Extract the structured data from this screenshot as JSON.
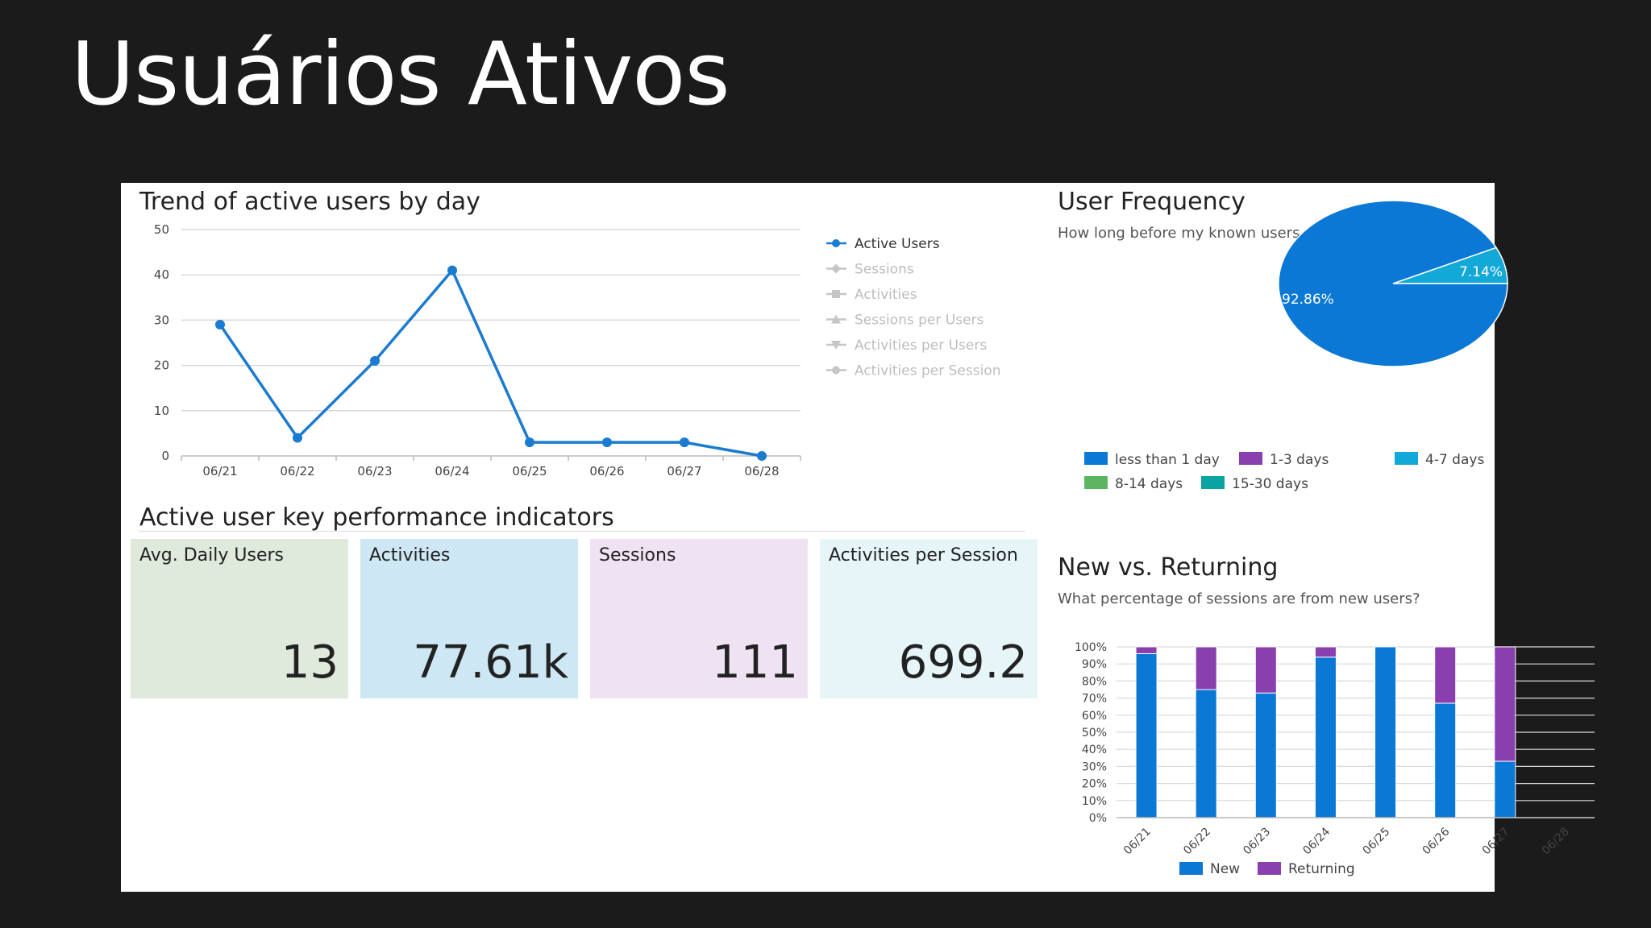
{
  "slide": {
    "title": "Usuários Ativos"
  },
  "trend": {
    "title": "Trend of active users by day",
    "chart_data": {
      "type": "line",
      "x": [
        "06/21",
        "06/22",
        "06/23",
        "06/24",
        "06/25",
        "06/26",
        "06/27",
        "06/28"
      ],
      "ylim": [
        0,
        50
      ],
      "yticks": [
        0,
        10,
        20,
        30,
        40,
        50
      ],
      "grid": true,
      "legend_position": "right",
      "series": [
        {
          "name": "Active Users",
          "values": [
            29,
            4,
            21,
            41,
            3,
            3,
            3,
            0
          ]
        }
      ],
      "legend": [
        {
          "label": "Active Users",
          "marker": "circle",
          "active": true
        },
        {
          "label": "Sessions",
          "marker": "diamond",
          "active": false
        },
        {
          "label": "Activities",
          "marker": "square",
          "active": false
        },
        {
          "label": "Sessions per Users",
          "marker": "triangle-up",
          "active": false
        },
        {
          "label": "Activities per Users",
          "marker": "triangle-down",
          "active": false
        },
        {
          "label": "Activities per Session",
          "marker": "circle",
          "active": false
        }
      ]
    },
    "colors": {
      "line": "#1a7bd0",
      "inactive": "#c6c6c6"
    }
  },
  "kpi": {
    "title": "Active user key performance indicators",
    "tiles": [
      {
        "label": "Avg. Daily Users",
        "value": "13",
        "color": "#dfeadc"
      },
      {
        "label": "Activities",
        "value": "77.61k",
        "color": "#cde8f4"
      },
      {
        "label": "Sessions",
        "value": "111",
        "color": "#efe2f3"
      },
      {
        "label": "Activities per Session",
        "value": "699.2",
        "color": "#e6f5f7"
      }
    ]
  },
  "frequency": {
    "title": "User Frequency",
    "subtitle": "How long before my known users return?",
    "chart_data": {
      "type": "pie",
      "slices": [
        {
          "label": "less than 1 day",
          "value": 92.86,
          "display": "92.86%",
          "color": "#0a78d4"
        },
        {
          "label": "4-7 days",
          "value": 7.14,
          "display": "7.14%",
          "color": "#12a9d9"
        }
      ],
      "legend_position": "bottom",
      "legend": [
        {
          "label": "less than 1 day",
          "color": "#0a78d4"
        },
        {
          "label": "1-3 days",
          "color": "#8a3fae"
        },
        {
          "label": "4-7 days",
          "color": "#12a9d9"
        },
        {
          "label": "8-14 days",
          "color": "#5bb561"
        },
        {
          "label": "15-30 days",
          "color": "#0aa3a3"
        }
      ]
    }
  },
  "newret": {
    "title": "New vs. Returning",
    "subtitle": "What percentage of sessions are from new users?",
    "chart_data": {
      "type": "bar",
      "stacked": true,
      "categories": [
        "06/21",
        "06/22",
        "06/23",
        "06/24",
        "06/25",
        "06/26",
        "06/27",
        "06/28"
      ],
      "ylim": [
        0,
        100
      ],
      "yticks": [
        "0%",
        "10%",
        "20%",
        "30%",
        "40%",
        "50%",
        "60%",
        "70%",
        "80%",
        "90%",
        "100%"
      ],
      "grid": true,
      "legend_position": "bottom",
      "series": [
        {
          "name": "New",
          "color": "#0a78d4",
          "values": [
            96,
            75,
            73,
            94,
            100,
            67,
            33,
            0
          ]
        },
        {
          "name": "Returning",
          "color": "#8a3fae",
          "values": [
            4,
            25,
            27,
            6,
            0,
            33,
            67,
            0
          ]
        }
      ]
    }
  }
}
